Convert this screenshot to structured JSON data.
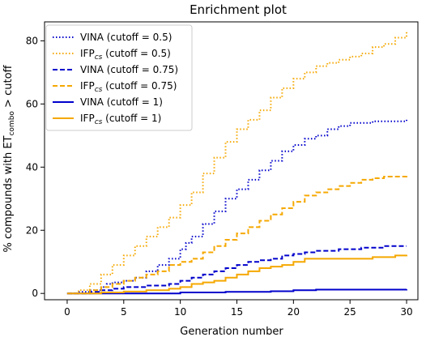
{
  "chart_data": {
    "type": "line",
    "title": "Enrichment plot",
    "xlabel": "Generation number",
    "ylabel_main": "% compounds with ET",
    "ylabel_sub": "combo",
    "ylabel_tail": " > cutoff",
    "xlim": [
      -2,
      31
    ],
    "ylim": [
      -2,
      86
    ],
    "xticks": [
      0,
      5,
      10,
      15,
      20,
      25,
      30
    ],
    "yticks": [
      0,
      20,
      40,
      60,
      80
    ],
    "grid": false,
    "legend_position": "top-left",
    "series": [
      {
        "name_main": "VINA (cutoff = 0.5)",
        "name_sub": "",
        "name_tail": "",
        "color": "#0000cc",
        "dash": "dotted",
        "steps": [
          [
            0,
            0
          ],
          [
            1,
            0.5
          ],
          [
            2,
            1
          ],
          [
            3,
            2
          ],
          [
            3.5,
            3
          ],
          [
            4,
            3.5
          ],
          [
            5,
            4
          ],
          [
            6,
            5
          ],
          [
            7,
            7
          ],
          [
            8,
            9
          ],
          [
            9,
            11
          ],
          [
            10,
            14
          ],
          [
            10.5,
            16
          ],
          [
            11,
            18
          ],
          [
            12,
            22
          ],
          [
            13,
            26
          ],
          [
            14,
            30
          ],
          [
            15,
            33
          ],
          [
            16,
            36
          ],
          [
            17,
            39
          ],
          [
            18,
            42
          ],
          [
            19,
            45
          ],
          [
            20,
            47
          ],
          [
            21,
            49
          ],
          [
            22,
            50
          ],
          [
            23,
            52
          ],
          [
            24,
            53
          ],
          [
            25,
            54
          ],
          [
            27,
            54.5
          ],
          [
            30,
            55
          ]
        ]
      },
      {
        "name_main": "IFP",
        "name_sub": "cs",
        "name_tail": " (cutoff = 0.5)",
        "color": "#f5a800",
        "dash": "dotted",
        "steps": [
          [
            0,
            0
          ],
          [
            1,
            1
          ],
          [
            2,
            3
          ],
          [
            3,
            6
          ],
          [
            4,
            9
          ],
          [
            5,
            12
          ],
          [
            6,
            15
          ],
          [
            7,
            18
          ],
          [
            8,
            21
          ],
          [
            9,
            24
          ],
          [
            10,
            28
          ],
          [
            11,
            32
          ],
          [
            12,
            38
          ],
          [
            13,
            43
          ],
          [
            14,
            48
          ],
          [
            15,
            52
          ],
          [
            16,
            55
          ],
          [
            17,
            58
          ],
          [
            18,
            62
          ],
          [
            19,
            65
          ],
          [
            20,
            68
          ],
          [
            21,
            70
          ],
          [
            22,
            72
          ],
          [
            23,
            73
          ],
          [
            24,
            74
          ],
          [
            25,
            75
          ],
          [
            26,
            76
          ],
          [
            27,
            78
          ],
          [
            28,
            79
          ],
          [
            29,
            81
          ],
          [
            30,
            83
          ]
        ]
      },
      {
        "name_main": "VINA (cutoff = 0.75)",
        "name_sub": "",
        "name_tail": "",
        "color": "#0000cc",
        "dash": "dashed",
        "steps": [
          [
            0,
            0
          ],
          [
            2,
            0.5
          ],
          [
            3,
            1
          ],
          [
            4,
            1.5
          ],
          [
            5,
            2
          ],
          [
            7,
            2.5
          ],
          [
            9,
            3
          ],
          [
            10,
            4
          ],
          [
            11,
            5
          ],
          [
            12,
            6
          ],
          [
            13,
            7
          ],
          [
            14,
            8
          ],
          [
            15,
            9
          ],
          [
            16,
            10
          ],
          [
            17,
            10.5
          ],
          [
            18,
            11
          ],
          [
            19,
            12
          ],
          [
            20,
            12.5
          ],
          [
            21,
            13
          ],
          [
            22,
            13.5
          ],
          [
            24,
            14
          ],
          [
            26,
            14.5
          ],
          [
            28,
            15
          ],
          [
            30,
            15
          ]
        ]
      },
      {
        "name_main": "IFP",
        "name_sub": "cs",
        "name_tail": " (cutoff = 0.75)",
        "color": "#f5a800",
        "dash": "dashed",
        "steps": [
          [
            0,
            0
          ],
          [
            2,
            1
          ],
          [
            3,
            2
          ],
          [
            4,
            3
          ],
          [
            5,
            4
          ],
          [
            6,
            5
          ],
          [
            7,
            6
          ],
          [
            8,
            7
          ],
          [
            9,
            9
          ],
          [
            10,
            10
          ],
          [
            11,
            11
          ],
          [
            12,
            13
          ],
          [
            13,
            15
          ],
          [
            14,
            17
          ],
          [
            15,
            19
          ],
          [
            16,
            21
          ],
          [
            17,
            23
          ],
          [
            18,
            25
          ],
          [
            19,
            27
          ],
          [
            20,
            29
          ],
          [
            21,
            31
          ],
          [
            22,
            32
          ],
          [
            23,
            33
          ],
          [
            24,
            34
          ],
          [
            25,
            35
          ],
          [
            26,
            36
          ],
          [
            27,
            36.5
          ],
          [
            28,
            37
          ],
          [
            30,
            37.5
          ]
        ]
      },
      {
        "name_main": "VINA (cutoff = 1)",
        "name_sub": "",
        "name_tail": "",
        "color": "#0000cc",
        "dash": "solid",
        "steps": [
          [
            0,
            0
          ],
          [
            8,
            0
          ],
          [
            10,
            0.3
          ],
          [
            14,
            0.5
          ],
          [
            18,
            0.7
          ],
          [
            20,
            1
          ],
          [
            22,
            1.2
          ],
          [
            30,
            1.3
          ]
        ]
      },
      {
        "name_main": "IFP",
        "name_sub": "cs",
        "name_tail": " (cutoff = 1)",
        "color": "#f5a800",
        "dash": "solid",
        "steps": [
          [
            0,
            0
          ],
          [
            3,
            0.3
          ],
          [
            5,
            0.6
          ],
          [
            7,
            1
          ],
          [
            9,
            1.5
          ],
          [
            10,
            2
          ],
          [
            11,
            3
          ],
          [
            12,
            3.5
          ],
          [
            13,
            4
          ],
          [
            14,
            5
          ],
          [
            15,
            6
          ],
          [
            16,
            7
          ],
          [
            17,
            8
          ],
          [
            18,
            8.5
          ],
          [
            19,
            9
          ],
          [
            20,
            10
          ],
          [
            21,
            11
          ],
          [
            25,
            11
          ],
          [
            27,
            11.5
          ],
          [
            29,
            12
          ],
          [
            30,
            12.2
          ]
        ]
      }
    ]
  }
}
